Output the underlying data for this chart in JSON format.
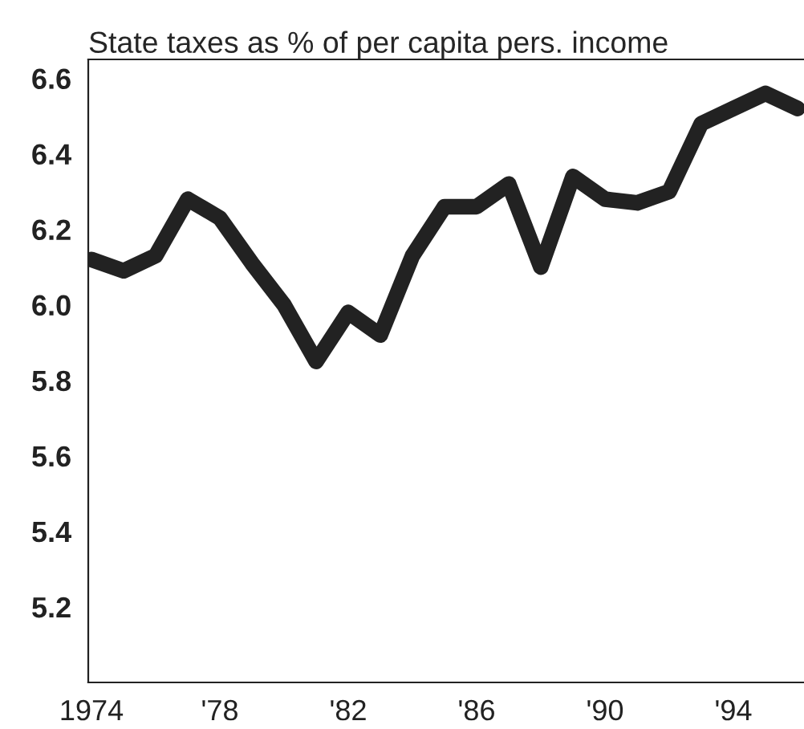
{
  "chart_data": {
    "type": "line",
    "title": "State taxes as % of per capita pers. income",
    "x": [
      1974,
      1975,
      1976,
      1977,
      1978,
      1979,
      1980,
      1981,
      1982,
      1983,
      1984,
      1985,
      1986,
      1987,
      1988,
      1989,
      1990,
      1991,
      1992,
      1993,
      1994,
      1995,
      1996
    ],
    "series": [
      {
        "color": "#222222",
        "values": [
          6.12,
          6.09,
          6.13,
          6.28,
          6.23,
          6.11,
          6.0,
          5.85,
          5.98,
          5.92,
          6.13,
          6.26,
          6.26,
          6.32,
          6.1,
          6.34,
          6.28,
          6.27,
          6.3,
          6.48,
          6.52,
          6.56,
          6.52
        ]
      }
    ],
    "xlim": [
      1973.9,
      1996.2
    ],
    "ylim": [
      5.0,
      6.65
    ],
    "xticks": [
      {
        "value": 1974,
        "label": "1974"
      },
      {
        "value": 1978,
        "label": "'78"
      },
      {
        "value": 1982,
        "label": "'82"
      },
      {
        "value": 1986,
        "label": "'86"
      },
      {
        "value": 1990,
        "label": "'90"
      },
      {
        "value": 1994,
        "label": "'94"
      }
    ],
    "yticks": [
      {
        "value": 5.2,
        "label": "5.2"
      },
      {
        "value": 5.4,
        "label": "5.4"
      },
      {
        "value": 5.6,
        "label": "5.6"
      },
      {
        "value": 5.8,
        "label": "5.8"
      },
      {
        "value": 6.0,
        "label": "6.0"
      },
      {
        "value": 6.2,
        "label": "6.2"
      },
      {
        "value": 6.4,
        "label": "6.4"
      },
      {
        "value": 6.6,
        "label": "6.6"
      }
    ],
    "grid": false,
    "legend": false,
    "marker": "none",
    "line_style": "solid"
  }
}
